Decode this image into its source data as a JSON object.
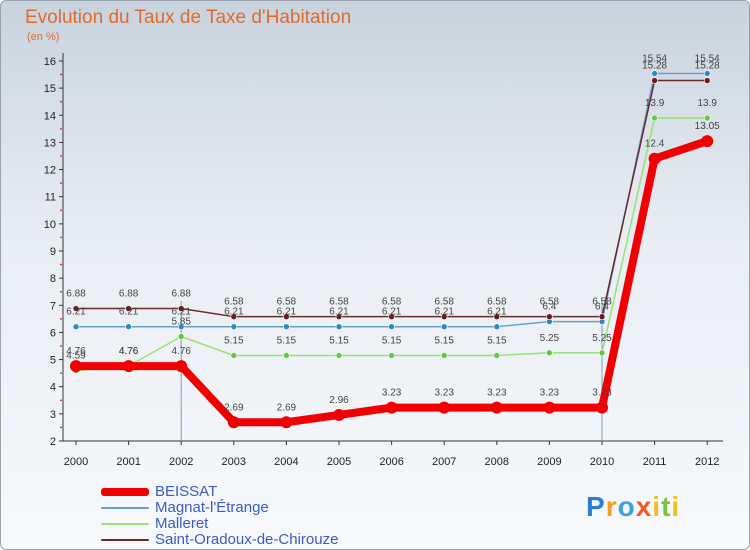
{
  "chart_data": {
    "type": "line",
    "title": "Evolution du Taux de Taxe d'Habitation",
    "subtitle": "(en %)",
    "xlabel": "",
    "ylabel": "",
    "x": [
      "2000",
      "2001",
      "2002",
      "2003",
      "2004",
      "2005",
      "2006",
      "2007",
      "2008",
      "2009",
      "2010",
      "2011",
      "2012"
    ],
    "yticks": [
      "2",
      "3",
      "4",
      "5",
      "6",
      "7",
      "8",
      "9",
      "10",
      "11",
      "12",
      "13",
      "14",
      "15",
      "16"
    ],
    "ylim": [
      2,
      16
    ],
    "grid": false,
    "legend_position": "bottom-left",
    "series": [
      {
        "name": "BEISSAT",
        "color": "#f00000",
        "line_width": 8,
        "marker_radius": 6,
        "marker_color": "#f00000",
        "values": [
          4.76,
          4.76,
          4.76,
          2.69,
          2.69,
          2.96,
          3.23,
          3.23,
          3.23,
          3.23,
          3.23,
          12.4,
          13.05
        ],
        "labels": [
          "4.76",
          "4.76",
          "4.76",
          "2.69",
          "2.69",
          "2.96",
          "3.23",
          "3.23",
          "3.23",
          "3.23",
          "3.23",
          "12.4",
          "13.05"
        ]
      },
      {
        "name": "Magnat-l'Étrange",
        "color": "#6aa0cc",
        "line_width": 1.5,
        "marker_radius": 3,
        "marker_color": "#2e88c6",
        "values": [
          6.21,
          6.21,
          6.21,
          6.21,
          6.21,
          6.21,
          6.21,
          6.21,
          6.21,
          6.4,
          6.4,
          15.54,
          15.54
        ],
        "labels": [
          "6.21",
          "6.21",
          "6.21",
          "6.21",
          "6.21",
          "6.21",
          "6.21",
          "6.21",
          "6.21",
          "6.4",
          "6.4",
          "15.54",
          "15.54"
        ]
      },
      {
        "name": "Malleret",
        "color": "#9be07a",
        "line_width": 1.5,
        "marker_radius": 3,
        "marker_color": "#62c842",
        "values": [
          4.59,
          4.76,
          5.85,
          5.15,
          5.15,
          5.15,
          5.15,
          5.15,
          5.15,
          5.25,
          5.25,
          13.9,
          13.9
        ],
        "labels": [
          "4.59",
          "4.76",
          "5.85",
          "5.15",
          "5.15",
          "5.15",
          "5.15",
          "5.15",
          "5.15",
          "5.25",
          "5.25",
          "13.9",
          "13.9"
        ]
      },
      {
        "name": "Saint-Oradoux-de-Chirouze",
        "color": "#6a2a2a",
        "line_width": 1.5,
        "marker_radius": 3,
        "marker_color": "#6a1b1b",
        "values": [
          6.88,
          6.88,
          6.88,
          6.58,
          6.58,
          6.58,
          6.58,
          6.58,
          6.58,
          6.58,
          6.58,
          15.28,
          15.28
        ],
        "labels": [
          "6.88",
          "6.88",
          "6.88",
          "6.58",
          "6.58",
          "6.58",
          "6.58",
          "6.58",
          "6.58",
          "6.58",
          "6.58",
          "15.28",
          "15.28"
        ]
      }
    ]
  },
  "brand": {
    "letters": [
      "P",
      "r",
      "o",
      "x",
      "i",
      "t",
      "i"
    ],
    "colors": [
      "#2a7fd4",
      "#f0a020",
      "#3aa0e0",
      "#f05a28",
      "#f0c020",
      "#7cc242",
      "#f0c020"
    ]
  }
}
